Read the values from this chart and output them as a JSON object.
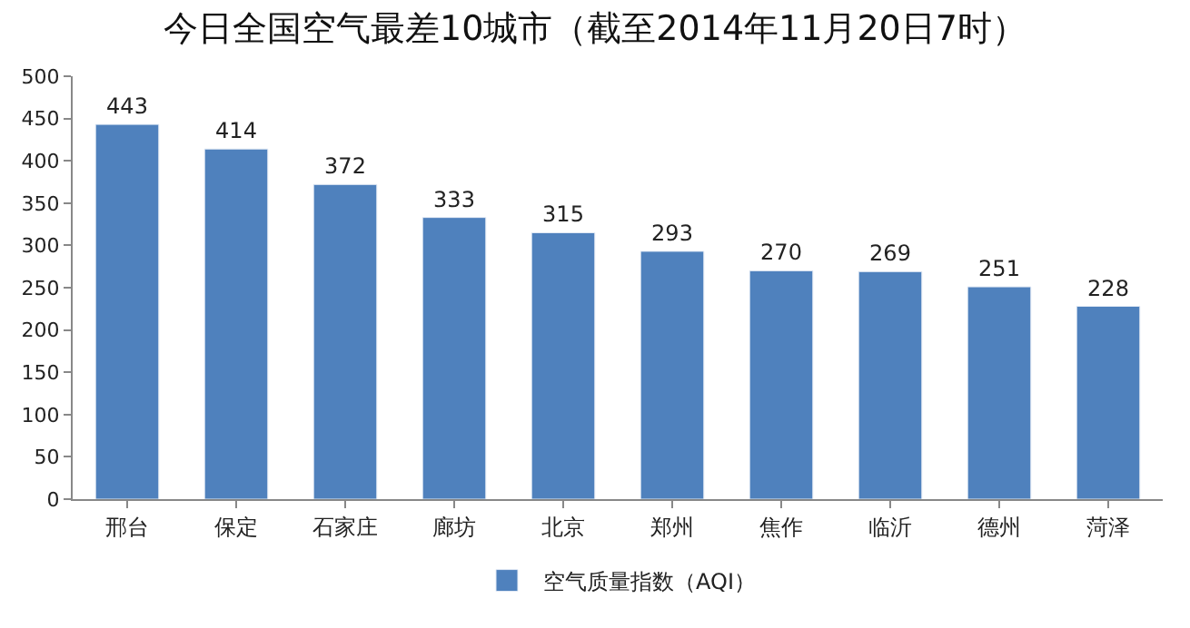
{
  "chart_data": {
    "type": "bar",
    "title": "今日全国空气最差10城市（截至2014年11月20日7时）",
    "categories": [
      "邢台",
      "保定",
      "石家庄",
      "廊坊",
      "北京",
      "郑州",
      "焦作",
      "临沂",
      "德州",
      "菏泽"
    ],
    "series": [
      {
        "name": "空气质量指数（AQI）",
        "color": "#4f81bd",
        "values": [
          443,
          414,
          372,
          333,
          315,
          293,
          270,
          269,
          251,
          228
        ]
      }
    ],
    "ylim": [
      0,
      500
    ],
    "yticks": [
      0,
      50,
      100,
      150,
      200,
      250,
      300,
      350,
      400,
      450,
      500
    ],
    "data_labels": true,
    "legend": "bottom",
    "grid": false
  }
}
